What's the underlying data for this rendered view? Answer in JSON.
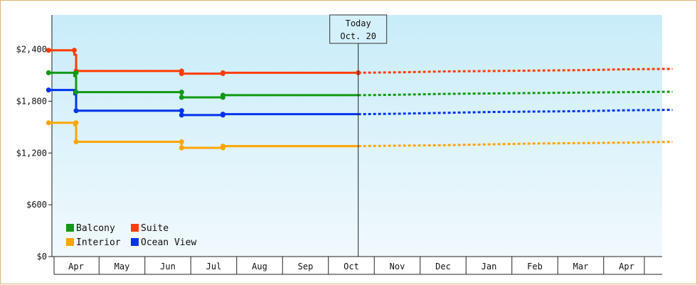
{
  "chart_data": {
    "type": "line",
    "title": "",
    "xlabel": "",
    "ylabel": "",
    "ylim": [
      0,
      2800
    ],
    "y_ticks": [
      "$0",
      "$600",
      "$1,200",
      "$1,800",
      "$2,400"
    ],
    "y_tick_values": [
      0,
      600,
      1200,
      1800,
      2400
    ],
    "x_months": [
      "Apr",
      "May",
      "Jun",
      "Jul",
      "Aug",
      "Sep",
      "Oct",
      "Nov",
      "Dec",
      "Jan",
      "Feb",
      "Mar",
      "Apr"
    ],
    "today": {
      "line1": "Today",
      "line2": "Oct. 20",
      "x": 6.15
    },
    "series": [
      {
        "name": "Suite",
        "color": "#ff3c00",
        "actual": [
          [
            -0.6,
            2390
          ],
          [
            -0.04,
            2390
          ],
          [
            -0.04,
            2340
          ],
          [
            0,
            2340
          ],
          [
            0,
            2150
          ],
          [
            2.3,
            2150
          ],
          [
            2.3,
            2120
          ],
          [
            3.2,
            2120
          ],
          [
            3.2,
            2130
          ],
          [
            6.15,
            2130
          ]
        ],
        "forecast": [
          [
            6.15,
            2130
          ],
          [
            7,
            2135
          ],
          [
            8,
            2145
          ],
          [
            9,
            2150
          ],
          [
            10,
            2155
          ],
          [
            11,
            2160
          ],
          [
            12,
            2170
          ],
          [
            13,
            2175
          ]
        ]
      },
      {
        "name": "Balcony",
        "color": "#119911",
        "actual": [
          [
            -0.6,
            2130
          ],
          [
            -0.04,
            2130
          ],
          [
            -0.04,
            2090
          ],
          [
            0,
            2090
          ],
          [
            0,
            1905
          ],
          [
            2.3,
            1905
          ],
          [
            2.3,
            1845
          ],
          [
            3.2,
            1845
          ],
          [
            3.2,
            1870
          ],
          [
            6.15,
            1870
          ]
        ],
        "forecast": [
          [
            6.15,
            1870
          ],
          [
            7,
            1875
          ],
          [
            8,
            1885
          ],
          [
            9,
            1890
          ],
          [
            10,
            1895
          ],
          [
            11,
            1900
          ],
          [
            12,
            1905
          ],
          [
            13,
            1910
          ]
        ]
      },
      {
        "name": "Ocean View",
        "color": "#0033ee",
        "actual": [
          [
            -0.6,
            1930
          ],
          [
            -0.04,
            1930
          ],
          [
            -0.04,
            1880
          ],
          [
            0,
            1880
          ],
          [
            0,
            1690
          ],
          [
            2.3,
            1690
          ],
          [
            2.3,
            1640
          ],
          [
            3.2,
            1640
          ],
          [
            3.2,
            1650
          ],
          [
            6.15,
            1650
          ]
        ],
        "forecast": [
          [
            6.15,
            1650
          ],
          [
            7,
            1655
          ],
          [
            8,
            1665
          ],
          [
            9,
            1675
          ],
          [
            10,
            1680
          ],
          [
            11,
            1685
          ],
          [
            12,
            1695
          ],
          [
            13,
            1700
          ]
        ]
      },
      {
        "name": "Interior",
        "color": "#ffa500",
        "actual": [
          [
            -0.6,
            1550
          ],
          [
            -0.04,
            1550
          ],
          [
            -0.04,
            1520
          ],
          [
            0,
            1520
          ],
          [
            0,
            1330
          ],
          [
            2.3,
            1330
          ],
          [
            2.3,
            1260
          ],
          [
            3.2,
            1260
          ],
          [
            3.2,
            1280
          ],
          [
            6.15,
            1280
          ]
        ],
        "forecast": [
          [
            6.15,
            1280
          ],
          [
            7,
            1285
          ],
          [
            8,
            1290
          ],
          [
            9,
            1300
          ],
          [
            10,
            1310
          ],
          [
            11,
            1315
          ],
          [
            12,
            1320
          ],
          [
            13,
            1330
          ]
        ]
      }
    ],
    "markers": [
      {
        "series": "Suite",
        "points": [
          [
            -0.6,
            2390
          ],
          [
            -0.04,
            2390
          ],
          [
            0,
            2150
          ],
          [
            2.3,
            2150
          ],
          [
            2.3,
            2120
          ],
          [
            3.2,
            2120
          ],
          [
            3.2,
            2130
          ],
          [
            6.15,
            2130
          ]
        ]
      },
      {
        "series": "Balcony",
        "points": [
          [
            -0.6,
            2130
          ],
          [
            0,
            2130
          ],
          [
            0,
            1905
          ],
          [
            2.3,
            1905
          ],
          [
            2.3,
            1845
          ],
          [
            3.2,
            1845
          ],
          [
            3.2,
            1870
          ]
        ]
      },
      {
        "series": "Ocean View",
        "points": [
          [
            -0.6,
            1930
          ],
          [
            0,
            1690
          ],
          [
            2.3,
            1690
          ],
          [
            2.3,
            1640
          ],
          [
            3.2,
            1640
          ],
          [
            3.2,
            1650
          ]
        ]
      },
      {
        "series": "Interior",
        "points": [
          [
            -0.6,
            1550
          ],
          [
            0,
            1550
          ],
          [
            0,
            1330
          ],
          [
            2.3,
            1330
          ],
          [
            2.3,
            1260
          ],
          [
            3.2,
            1260
          ],
          [
            3.2,
            1280
          ]
        ]
      }
    ],
    "legend": [
      {
        "name": "Balcony",
        "color": "#119911"
      },
      {
        "name": "Suite",
        "color": "#ff3c00"
      },
      {
        "name": "Interior",
        "color": "#ffa500"
      },
      {
        "name": "Ocean View",
        "color": "#0033ee"
      }
    ],
    "legend_position": "bottom-left",
    "grid": false,
    "background": [
      "#c8ecf9",
      "#f1f9fd"
    ]
  }
}
